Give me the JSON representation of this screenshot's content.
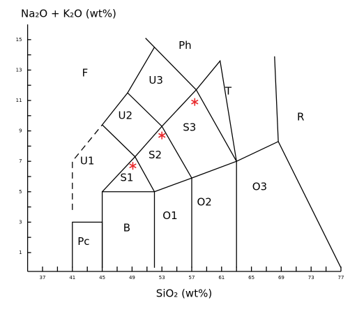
{
  "chart_data": {
    "type": "scatter",
    "xlabel": "SiO₂ (wt%)",
    "ylabel": "Na₂O + K₂O (wt%)",
    "xlim": [
      35,
      77
    ],
    "ylim": [
      -0.24,
      16
    ],
    "xticks": [
      37,
      41,
      45,
      49,
      53,
      57,
      61,
      65,
      69,
      73,
      77
    ],
    "xminor": [
      39,
      43,
      47,
      51,
      55,
      59,
      63,
      67,
      71,
      75
    ],
    "yticks": [
      1,
      3,
      5,
      7,
      9,
      11,
      13,
      15
    ],
    "yminor": [
      2,
      4,
      6,
      8,
      10,
      12,
      14
    ],
    "series": [
      {
        "color": "#e8282b",
        "x": [
          49.1,
          53.0,
          57.4
        ],
        "values": [
          6.7,
          8.7,
          10.9
        ]
      }
    ],
    "boundaries": [
      {
        "x": [
          41,
          41,
          45,
          45
        ],
        "y": [
          0,
          3,
          3,
          0
        ]
      },
      {
        "x": [
          45,
          45,
          52,
          52
        ],
        "y": [
          0,
          5,
          5,
          0
        ]
      },
      {
        "x": [
          52,
          57,
          57
        ],
        "y": [
          5,
          5.9,
          0
        ]
      },
      {
        "x": [
          57,
          63,
          63
        ],
        "y": [
          5.9,
          7,
          0
        ]
      },
      {
        "x": [
          63,
          68.6,
          77
        ],
        "y": [
          7,
          8.3,
          0
        ]
      },
      {
        "x": [
          45,
          49.4,
          52
        ],
        "y": [
          5,
          7.3,
          5
        ]
      },
      {
        "x": [
          49.4,
          53,
          57
        ],
        "y": [
          7.3,
          9.3,
          5.9
        ]
      },
      {
        "x": [
          53,
          57.6,
          63
        ],
        "y": [
          9.3,
          11.7,
          7
        ]
      },
      {
        "x": [
          57.6,
          60.8,
          63
        ],
        "y": [
          11.7,
          13.6,
          7
        ]
      },
      {
        "x": [
          45,
          49.4
        ],
        "y": [
          9.4,
          7.3
        ]
      },
      {
        "x": [
          45,
          48.4,
          53
        ],
        "y": [
          9.4,
          11.5,
          9.3
        ]
      },
      {
        "x": [
          48.4,
          48.4
        ],
        "y": [
          11.5,
          11.5
        ]
      },
      {
        "x": [
          48.4,
          52,
          57.6
        ],
        "y": [
          11.5,
          14.5,
          11.7
        ]
      },
      {
        "x": [
          52,
          50.8
        ],
        "y": [
          14.5,
          15.1
        ]
      },
      {
        "x": [
          68.6,
          68.1
        ],
        "y": [
          8.3,
          13.9
        ]
      },
      {
        "x": [
          41,
          41,
          45
        ],
        "y": [
          3.8,
          7.0,
          9.4
        ],
        "dashed": true
      }
    ],
    "fields": [
      {
        "label": "F",
        "x": 42.7,
        "y": 12.8
      },
      {
        "label": "Ph",
        "x": 56.1,
        "y": 14.6
      },
      {
        "label": "U3",
        "x": 52.2,
        "y": 12.3
      },
      {
        "label": "U2",
        "x": 48.1,
        "y": 10.0
      },
      {
        "label": "U1",
        "x": 43.0,
        "y": 7.0
      },
      {
        "label": "S1",
        "x": 48.3,
        "y": 5.9
      },
      {
        "label": "S2",
        "x": 52.1,
        "y": 7.4
      },
      {
        "label": "S3",
        "x": 56.7,
        "y": 9.2
      },
      {
        "label": "T",
        "x": 61.9,
        "y": 11.6
      },
      {
        "label": "R",
        "x": 71.6,
        "y": 9.9
      },
      {
        "label": "O3",
        "x": 66.1,
        "y": 5.3
      },
      {
        "label": "O2",
        "x": 58.7,
        "y": 4.3
      },
      {
        "label": "O1",
        "x": 54.1,
        "y": 3.4
      },
      {
        "label": "B",
        "x": 48.3,
        "y": 2.6
      },
      {
        "label": "Pc",
        "x": 42.5,
        "y": 1.7
      }
    ]
  }
}
